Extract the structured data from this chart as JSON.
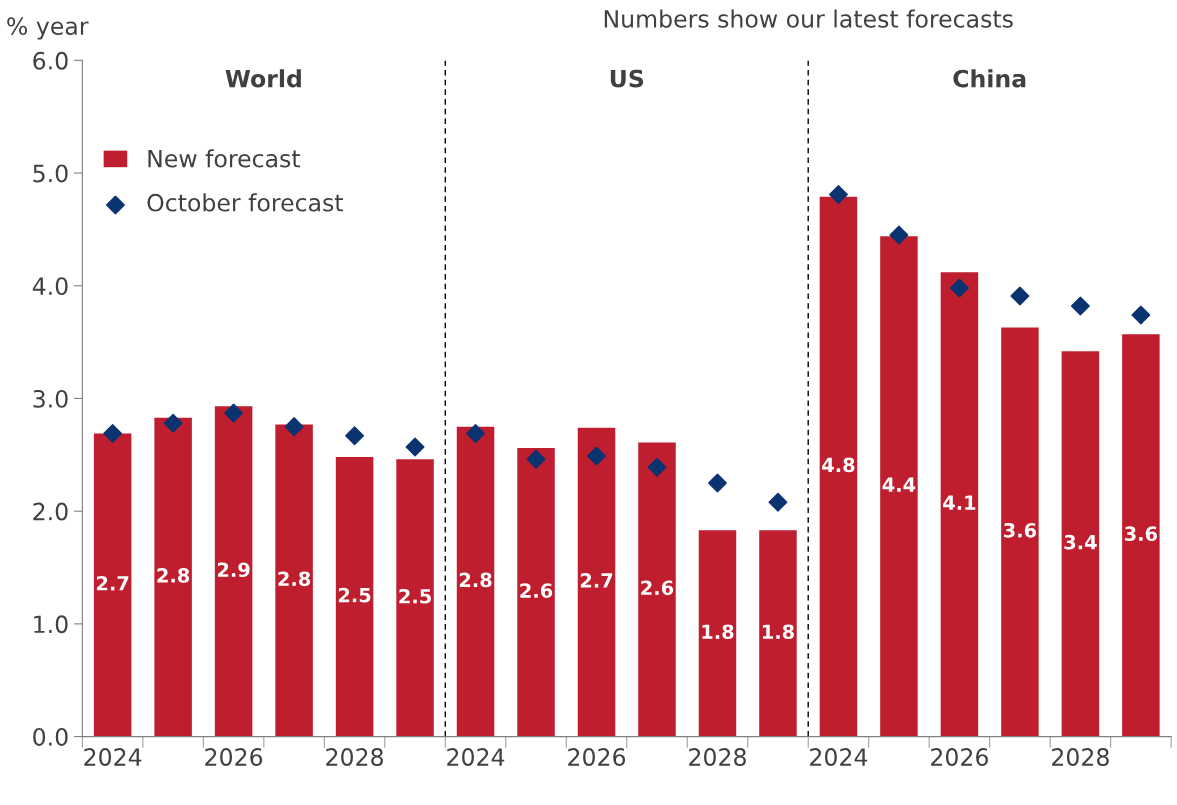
{
  "chart_data": {
    "type": "bar",
    "ylabel": "% year",
    "categories": [
      "2024",
      null,
      "2026",
      null,
      "2028",
      null,
      "2024",
      null,
      "2026",
      null,
      "2028",
      null,
      "2024",
      null,
      "2026",
      null,
      "2028",
      null
    ],
    "series": [
      {
        "name": "New forecast",
        "color": "#be1e2d",
        "values": [
          2.69,
          2.83,
          2.93,
          2.77,
          2.48,
          2.46,
          2.75,
          2.56,
          2.74,
          2.61,
          1.83,
          1.83,
          4.79,
          4.44,
          4.12,
          3.63,
          3.42,
          3.57
        ],
        "value_labels": [
          "2.7",
          "2.8",
          "2.9",
          "2.8",
          "2.5",
          "2.5",
          "2.8",
          "2.6",
          "2.7",
          "2.6",
          "1.8",
          "1.8",
          "4.8",
          "4.4",
          "4.1",
          "3.6",
          "3.4",
          "3.6"
        ]
      },
      {
        "name": "October forecast",
        "type": "scatter",
        "color": "#0a3370",
        "marker": "diamond",
        "values": [
          2.69,
          2.78,
          2.87,
          2.75,
          2.67,
          2.57,
          2.69,
          2.46,
          2.49,
          2.39,
          2.25,
          2.08,
          4.81,
          4.45,
          3.98,
          3.91,
          3.82,
          3.74
        ]
      }
    ],
    "ylim": [
      0,
      6
    ],
    "yticks": [
      {
        "value": 0,
        "label": "0.0"
      },
      {
        "value": 1,
        "label": "1.0"
      },
      {
        "value": 2,
        "label": "2.0"
      },
      {
        "value": 3,
        "label": "3.0"
      },
      {
        "value": 4,
        "label": "4.0"
      },
      {
        "value": 5,
        "label": "5.0"
      },
      {
        "value": 6,
        "label": "6.0"
      }
    ],
    "annotations": [
      "World",
      "US",
      "China",
      "Numbers show our latest forecasts"
    ],
    "legend": "top left",
    "grid": false
  }
}
